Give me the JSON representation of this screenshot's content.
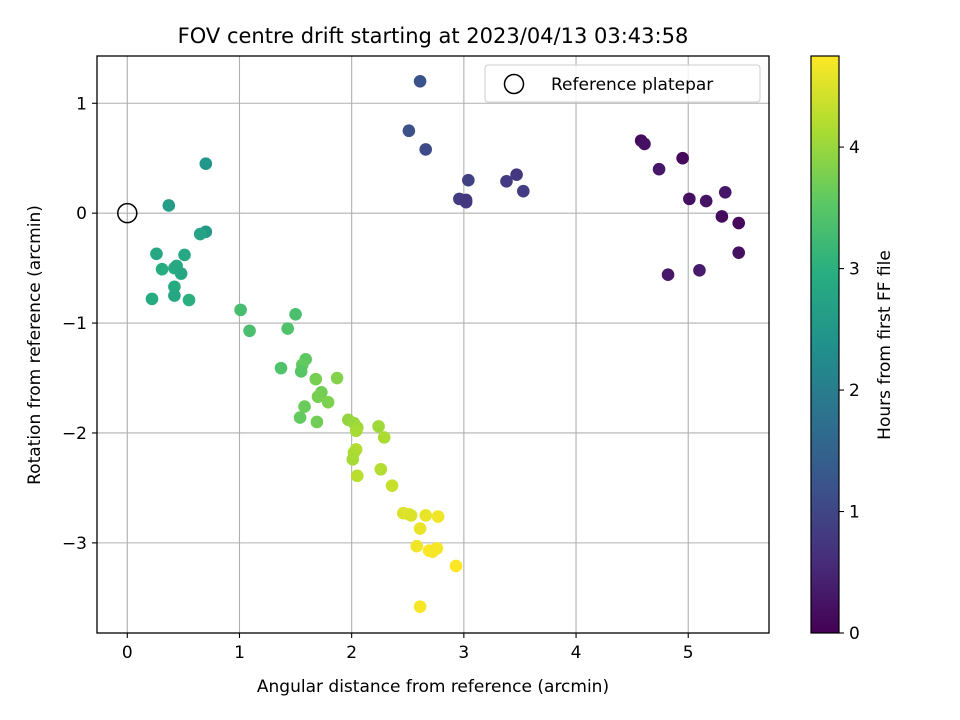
{
  "chart_data": {
    "type": "scatter",
    "title": "FOV centre drift starting at 2023/04/13 03:43:58",
    "xlabel": "Angular distance from reference (arcmin)",
    "ylabel": "Rotation from reference (arcmin)",
    "xlim": [
      -0.27,
      5.72
    ],
    "ylim": [
      -3.82,
      1.43
    ],
    "xticks": [
      0,
      1,
      2,
      3,
      4,
      5
    ],
    "yticks": [
      -3,
      -2,
      -1,
      0,
      1
    ],
    "grid": true,
    "legend": {
      "position": "top-right",
      "entries": [
        "Reference platepar"
      ]
    },
    "reference_point": {
      "label": "Reference platepar",
      "x": 0,
      "y": 0
    },
    "colorbar": {
      "label": "Hours from first FF file",
      "colormap": "viridis",
      "range": [
        0,
        4.75
      ],
      "ticks": [
        0,
        1,
        2,
        3,
        4
      ]
    },
    "series": [
      {
        "points": [
          {
            "x": 4.58,
            "y": 0.66,
            "t": 0.15
          },
          {
            "x": 4.61,
            "y": 0.63,
            "t": 0.2
          },
          {
            "x": 4.74,
            "y": 0.4,
            "t": 0.3
          },
          {
            "x": 4.95,
            "y": 0.5,
            "t": 0.1
          },
          {
            "x": 5.01,
            "y": 0.13,
            "t": 0.2
          },
          {
            "x": 5.16,
            "y": 0.11,
            "t": 0.25
          },
          {
            "x": 5.33,
            "y": 0.19,
            "t": 0.3
          },
          {
            "x": 5.3,
            "y": -0.03,
            "t": 0.15
          },
          {
            "x": 5.45,
            "y": -0.09,
            "t": 0.1
          },
          {
            "x": 5.45,
            "y": -0.36,
            "t": 0.2
          },
          {
            "x": 4.82,
            "y": -0.56,
            "t": 0.3
          },
          {
            "x": 5.1,
            "y": -0.52,
            "t": 0.35
          },
          {
            "x": 2.61,
            "y": 1.2,
            "t": 1.2
          },
          {
            "x": 2.51,
            "y": 0.75,
            "t": 1.15
          },
          {
            "x": 2.66,
            "y": 0.58,
            "t": 1.05
          },
          {
            "x": 3.04,
            "y": 0.3,
            "t": 0.9
          },
          {
            "x": 2.96,
            "y": 0.13,
            "t": 0.85
          },
          {
            "x": 3.02,
            "y": 0.1,
            "t": 0.8
          },
          {
            "x": 3.02,
            "y": 0.12,
            "t": 0.75
          },
          {
            "x": 3.38,
            "y": 0.29,
            "t": 0.8
          },
          {
            "x": 3.47,
            "y": 0.35,
            "t": 0.75
          },
          {
            "x": 3.53,
            "y": 0.2,
            "t": 0.85
          },
          {
            "x": 0.7,
            "y": 0.45,
            "t": 2.5
          },
          {
            "x": 0.37,
            "y": 0.07,
            "t": 2.6
          },
          {
            "x": 0.7,
            "y": -0.17,
            "t": 2.55
          },
          {
            "x": 0.65,
            "y": -0.19,
            "t": 2.75
          },
          {
            "x": 0.26,
            "y": -0.37,
            "t": 2.8
          },
          {
            "x": 0.51,
            "y": -0.38,
            "t": 2.85
          },
          {
            "x": 0.31,
            "y": -0.51,
            "t": 2.9
          },
          {
            "x": 0.42,
            "y": -0.5,
            "t": 2.95
          },
          {
            "x": 0.44,
            "y": -0.48,
            "t": 2.85
          },
          {
            "x": 0.48,
            "y": -0.55,
            "t": 2.8
          },
          {
            "x": 0.42,
            "y": -0.67,
            "t": 2.9
          },
          {
            "x": 0.42,
            "y": -0.75,
            "t": 2.8
          },
          {
            "x": 0.22,
            "y": -0.78,
            "t": 2.9
          },
          {
            "x": 0.55,
            "y": -0.79,
            "t": 3.0
          },
          {
            "x": 1.01,
            "y": -0.88,
            "t": 3.3
          },
          {
            "x": 1.09,
            "y": -1.07,
            "t": 3.35
          },
          {
            "x": 1.43,
            "y": -1.05,
            "t": 3.4
          },
          {
            "x": 1.5,
            "y": -0.92,
            "t": 3.35
          },
          {
            "x": 1.37,
            "y": -1.41,
            "t": 3.4
          },
          {
            "x": 1.59,
            "y": -1.33,
            "t": 3.55
          },
          {
            "x": 1.56,
            "y": -1.38,
            "t": 3.6
          },
          {
            "x": 1.55,
            "y": -1.44,
            "t": 3.5
          },
          {
            "x": 1.68,
            "y": -1.51,
            "t": 3.75
          },
          {
            "x": 1.87,
            "y": -1.5,
            "t": 3.85
          },
          {
            "x": 1.73,
            "y": -1.63,
            "t": 3.7
          },
          {
            "x": 1.7,
            "y": -1.67,
            "t": 3.75
          },
          {
            "x": 1.79,
            "y": -1.72,
            "t": 3.8
          },
          {
            "x": 1.58,
            "y": -1.76,
            "t": 3.65
          },
          {
            "x": 1.54,
            "y": -1.86,
            "t": 3.6
          },
          {
            "x": 1.69,
            "y": -1.9,
            "t": 3.7
          },
          {
            "x": 1.97,
            "y": -1.88,
            "t": 3.95
          },
          {
            "x": 2.02,
            "y": -1.91,
            "t": 4.0
          },
          {
            "x": 2.05,
            "y": -1.95,
            "t": 4.05
          },
          {
            "x": 2.04,
            "y": -1.98,
            "t": 4.1
          },
          {
            "x": 2.24,
            "y": -1.94,
            "t": 4.05
          },
          {
            "x": 2.29,
            "y": -2.04,
            "t": 4.15
          },
          {
            "x": 2.04,
            "y": -2.15,
            "t": 4.2
          },
          {
            "x": 2.02,
            "y": -2.18,
            "t": 4.15
          },
          {
            "x": 2.01,
            "y": -2.24,
            "t": 4.1
          },
          {
            "x": 2.26,
            "y": -2.33,
            "t": 4.2
          },
          {
            "x": 2.05,
            "y": -2.39,
            "t": 4.25
          },
          {
            "x": 2.36,
            "y": -2.48,
            "t": 4.35
          },
          {
            "x": 2.46,
            "y": -2.73,
            "t": 4.5
          },
          {
            "x": 2.51,
            "y": -2.74,
            "t": 4.55
          },
          {
            "x": 2.53,
            "y": -2.75,
            "t": 4.5
          },
          {
            "x": 2.66,
            "y": -2.75,
            "t": 4.6
          },
          {
            "x": 2.77,
            "y": -2.76,
            "t": 4.65
          },
          {
            "x": 2.61,
            "y": -2.87,
            "t": 4.6
          },
          {
            "x": 2.58,
            "y": -3.03,
            "t": 4.65
          },
          {
            "x": 2.76,
            "y": -3.05,
            "t": 4.7
          },
          {
            "x": 2.69,
            "y": -3.07,
            "t": 4.75
          },
          {
            "x": 2.72,
            "y": -3.08,
            "t": 4.7
          },
          {
            "x": 2.93,
            "y": -3.21,
            "t": 4.75
          },
          {
            "x": 2.61,
            "y": -3.58,
            "t": 4.7
          }
        ]
      }
    ]
  }
}
